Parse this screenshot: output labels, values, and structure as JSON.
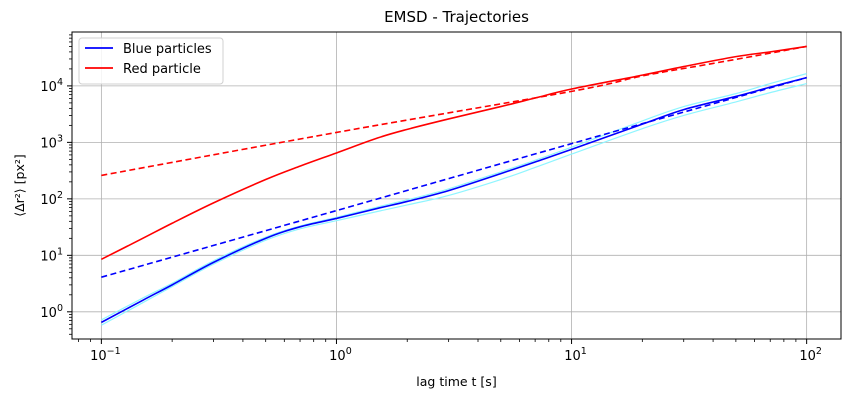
{
  "chart_data": {
    "type": "line",
    "title": "EMSD - Trajectories",
    "xlabel": "lag time t [s]",
    "ylabel": "⟨Δr²⟩ [px²]",
    "xscale": "log",
    "yscale": "log",
    "xlim": [
      0.075,
      140
    ],
    "ylim": [
      0.33,
      90000
    ],
    "grid": true,
    "legend_position": "top-left",
    "xticks": [
      {
        "value": 0.1,
        "base": "10",
        "exp": "−1"
      },
      {
        "value": 1,
        "base": "10",
        "exp": "0"
      },
      {
        "value": 10,
        "base": "10",
        "exp": "1"
      },
      {
        "value": 100,
        "base": "10",
        "exp": "2"
      }
    ],
    "yticks": [
      {
        "value": 1,
        "base": "10",
        "exp": "0"
      },
      {
        "value": 10,
        "base": "10",
        "exp": "1"
      },
      {
        "value": 100,
        "base": "10",
        "exp": "2"
      },
      {
        "value": 1000,
        "base": "10",
        "exp": "3"
      },
      {
        "value": 10000,
        "base": "10",
        "exp": "4"
      }
    ],
    "series": [
      {
        "name": "Blue particles",
        "color": "#0000ff",
        "style": "solid",
        "width": 1.6,
        "legend": true,
        "x": [
          0.1,
          0.15,
          0.2,
          0.3,
          0.5,
          0.7,
          1,
          1.5,
          2,
          3,
          5,
          7,
          10,
          20,
          30,
          50,
          70,
          100
        ],
        "y": [
          0.65,
          1.6,
          3,
          7.5,
          20,
          32,
          45,
          68,
          90,
          140,
          280,
          450,
          750,
          2100,
          3800,
          6500,
          9500,
          14000
        ]
      },
      {
        "color": "#8ff5ff",
        "style": "solid",
        "width": 1.2,
        "legend": false,
        "x": [
          0.1,
          0.15,
          0.2,
          0.3,
          0.5,
          0.7,
          1,
          1.5,
          2,
          3,
          5,
          7,
          10,
          20,
          30,
          50,
          70,
          100
        ],
        "y": [
          0.72,
          1.75,
          3.2,
          8,
          21,
          33,
          47,
          72,
          96,
          150,
          300,
          480,
          820,
          2400,
          4300,
          7300,
          11000,
          16500
        ]
      },
      {
        "color": "#8ff5ff",
        "style": "solid",
        "width": 1.2,
        "legend": false,
        "x": [
          0.1,
          0.15,
          0.2,
          0.3,
          0.5,
          0.7,
          1,
          1.5,
          2,
          3,
          5,
          7,
          10,
          20,
          30,
          50,
          70,
          100
        ],
        "y": [
          0.58,
          1.45,
          2.8,
          7,
          18.5,
          29.5,
          41,
          60,
          78,
          115,
          220,
          360,
          620,
          1750,
          3000,
          5200,
          7600,
          11000
        ]
      },
      {
        "color": "#0000ff",
        "style": "dashed",
        "width": 1.6,
        "legend": false,
        "x": [
          0.1,
          1,
          10,
          100
        ],
        "y": [
          4.1,
          62,
          950,
          14000
        ]
      },
      {
        "name": "Red particle",
        "color": "#ff0000",
        "style": "solid",
        "width": 1.6,
        "legend": true,
        "x": [
          0.1,
          0.15,
          0.2,
          0.3,
          0.5,
          0.7,
          1,
          1.5,
          2,
          3,
          5,
          7,
          10,
          20,
          30,
          50,
          70,
          100
        ],
        "y": [
          8.5,
          20,
          37,
          85,
          220,
          380,
          650,
          1200,
          1700,
          2600,
          4300,
          6100,
          8800,
          15500,
          22000,
          33000,
          40000,
          50000
        ]
      },
      {
        "color": "#ff0000",
        "style": "dashed",
        "width": 1.6,
        "legend": false,
        "x": [
          0.1,
          1,
          10,
          20,
          40,
          70,
          100
        ],
        "y": [
          260,
          1500,
          8000,
          15000,
          25000,
          38000,
          50000
        ]
      }
    ]
  }
}
